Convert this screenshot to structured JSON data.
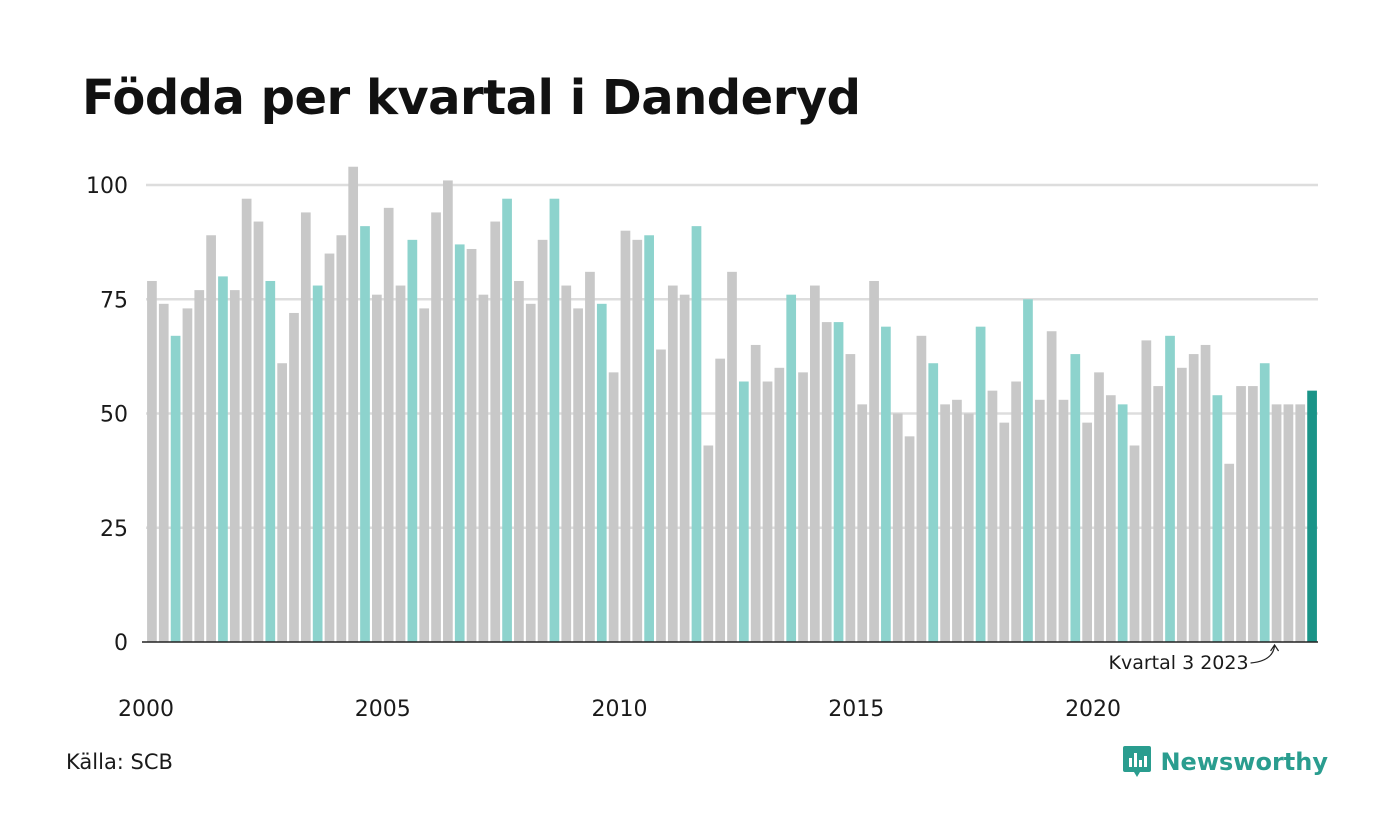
{
  "title": "Födda per kvartal i Danderyd",
  "source": "Källa: SCB",
  "logo": {
    "text": "Newsworthy",
    "icon": "newsworthy-logo-icon"
  },
  "colors": {
    "default_bar": "#c8c8c8",
    "quarter3_bar": "#8dd3cd",
    "highlight_bar": "#1a9488",
    "grid": "#dddddd",
    "axis": "#222222",
    "logo": "#2a9d8f"
  },
  "chart_data": {
    "type": "bar",
    "title": "Födda per kvartal i Danderyd",
    "xlabel": "",
    "ylabel": "",
    "ylim": [
      0,
      100
    ],
    "yticks": [
      0,
      25,
      50,
      75,
      100
    ],
    "xticks": [
      "2000",
      "2005",
      "2010",
      "2015",
      "2020"
    ],
    "grid": true,
    "start_year": 2000,
    "highlight_quarter": 3,
    "annotation": {
      "text": "Kvartal 3 2023",
      "target_index": 95
    },
    "values": [
      79,
      74,
      67,
      73,
      77,
      89,
      80,
      77,
      97,
      92,
      79,
      61,
      72,
      94,
      78,
      85,
      89,
      104,
      91,
      76,
      95,
      78,
      88,
      73,
      94,
      101,
      87,
      86,
      76,
      92,
      97,
      79,
      74,
      88,
      97,
      78,
      73,
      81,
      74,
      59,
      90,
      88,
      89,
      64,
      78,
      76,
      91,
      43,
      62,
      81,
      57,
      65,
      57,
      60,
      76,
      59,
      78,
      70,
      70,
      63,
      52,
      79,
      69,
      50,
      45,
      67,
      61,
      52,
      53,
      50,
      69,
      55,
      48,
      57,
      75,
      53,
      68,
      53,
      63,
      48,
      59,
      54,
      52,
      43,
      66,
      56,
      67,
      60,
      63,
      65,
      54,
      39,
      56,
      56,
      61,
      52,
      52,
      52,
      55
    ]
  }
}
